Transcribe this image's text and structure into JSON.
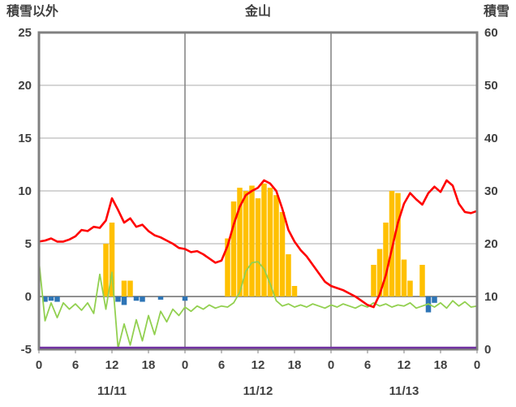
{
  "header": {
    "left_label": "積雪以外",
    "title": "金山",
    "right_label": "積雪"
  },
  "chart_data": {
    "type": "bar+line combo (hourly weather observation over 3 days)",
    "title": "金山",
    "left_axis": {
      "label": "積雪以外",
      "min": -5,
      "max": 25,
      "tick_step": 5,
      "ticks": [
        25,
        20,
        15,
        10,
        5,
        0,
        -5
      ]
    },
    "right_axis": {
      "label": "積雪",
      "min": 0,
      "max": 60,
      "tick_step": 10,
      "ticks": [
        60,
        50,
        40,
        30,
        20,
        10,
        0
      ]
    },
    "x_axis": {
      "total_hours": 72,
      "hour_label_step": 6,
      "hour_labels": [
        "0",
        "6",
        "12",
        "18",
        "0",
        "6",
        "12",
        "18",
        "0",
        "6",
        "12",
        "18",
        "0"
      ],
      "date_labels": [
        "11/11",
        "11/12",
        "11/13"
      ]
    },
    "grid": {
      "h_lines_at": [
        20,
        15,
        10,
        5,
        0
      ],
      "v_lines_at_hours": [
        24,
        48
      ]
    },
    "colors": {
      "frame": "#808080",
      "grid": "#ababab",
      "zero_line": "#808080",
      "red_line": "#ff0000",
      "green_line": "#92d050",
      "orange_bars": "#ffc000",
      "blue_bars": "#2e75b6",
      "purple_line": "#7030a0",
      "text": "#404040"
    },
    "series": [
      {
        "name": "red_line",
        "type": "line",
        "axis": "left",
        "color_key": "red_line",
        "values": [
          5.2,
          5.3,
          5.5,
          5.2,
          5.2,
          5.4,
          5.7,
          6.3,
          6.2,
          6.6,
          6.5,
          7.2,
          9.3,
          8.2,
          7.0,
          7.4,
          6.6,
          6.8,
          6.2,
          5.8,
          5.6,
          5.3,
          5.0,
          4.6,
          4.5,
          4.2,
          4.3,
          4.0,
          3.6,
          3.2,
          3.4,
          4.8,
          6.8,
          8.5,
          9.6,
          10.0,
          10.3,
          11.0,
          10.7,
          10.0,
          8.3,
          6.3,
          5.2,
          4.4,
          3.8,
          3.0,
          2.2,
          1.4,
          1.0,
          0.8,
          0.6,
          0.3,
          0.0,
          -0.4,
          -0.8,
          -1.0,
          0.2,
          2.0,
          4.5,
          7.0,
          8.8,
          9.8,
          9.2,
          8.7,
          9.8,
          10.4,
          9.9,
          11.0,
          10.5,
          8.8,
          8.0,
          7.9,
          8.1
        ]
      },
      {
        "name": "green_line",
        "type": "line",
        "axis": "left",
        "color_key": "green_line",
        "values": [
          3.4,
          -2.3,
          -0.6,
          -2.0,
          -0.6,
          -1.2,
          -0.7,
          -1.3,
          -0.6,
          -1.6,
          2.1,
          -1.2,
          2.3,
          -4.9,
          -2.6,
          -4.6,
          -2.2,
          -4.2,
          -1.8,
          -3.6,
          -1.4,
          -2.4,
          -1.2,
          -1.8,
          -1.0,
          -1.4,
          -0.9,
          -1.2,
          -0.8,
          -1.1,
          -0.9,
          -1.0,
          -0.6,
          0.4,
          2.4,
          3.2,
          3.3,
          2.6,
          1.2,
          -0.4,
          -0.9,
          -0.7,
          -1.0,
          -0.8,
          -1.0,
          -0.7,
          -0.9,
          -1.1,
          -0.8,
          -1.0,
          -0.7,
          -0.9,
          -1.1,
          -0.8,
          -1.0,
          -0.6,
          -0.9,
          -0.7,
          -1.0,
          -0.8,
          -0.9,
          -0.6,
          -1.1,
          -0.9,
          -0.7,
          -1.0,
          -0.6,
          -1.1,
          -0.4,
          -0.9,
          -0.5,
          -1.0,
          -0.9
        ]
      },
      {
        "name": "orange_bars",
        "type": "bar",
        "axis": "left",
        "color_key": "orange_bars",
        "values": [
          0,
          0,
          0,
          0,
          0,
          0,
          0,
          0,
          0,
          0,
          0,
          5.0,
          7.0,
          0,
          1.5,
          1.5,
          0,
          0,
          0,
          0,
          0,
          0,
          0,
          0,
          0,
          0,
          0,
          0,
          0,
          0,
          0,
          5.5,
          9.0,
          10.3,
          10.0,
          10.5,
          9.3,
          10.7,
          10.3,
          9.6,
          8.0,
          4.0,
          1.0,
          0,
          0,
          0,
          0,
          0,
          0,
          0,
          0,
          0,
          0,
          0,
          0,
          3.0,
          4.5,
          7.0,
          10.0,
          9.8,
          3.5,
          1.5,
          0,
          3.0,
          0,
          0,
          0,
          0,
          0,
          0,
          0,
          0,
          0
        ]
      },
      {
        "name": "blue_bars",
        "type": "bar",
        "axis": "left",
        "color_key": "blue_bars",
        "values": [
          0,
          -0.5,
          -0.4,
          -0.5,
          0,
          0,
          0,
          0,
          0,
          0,
          0,
          0,
          0,
          -0.5,
          -0.8,
          0,
          -0.4,
          -0.5,
          0,
          0,
          -0.3,
          0,
          0,
          0,
          -0.4,
          0,
          0,
          0,
          0,
          0,
          0,
          0,
          0,
          0,
          0,
          0,
          0,
          0,
          0,
          0,
          0,
          0,
          0,
          0,
          0,
          0,
          0,
          0,
          0,
          0,
          0,
          0,
          0,
          0,
          0,
          0,
          0,
          0,
          0,
          0,
          0,
          0,
          0,
          0,
          -1.5,
          -0.6,
          0,
          0,
          0,
          0,
          0,
          0,
          0
        ]
      },
      {
        "name": "purple_line",
        "type": "line",
        "axis": "right",
        "color_key": "purple_line",
        "constant_value": 0
      }
    ]
  }
}
